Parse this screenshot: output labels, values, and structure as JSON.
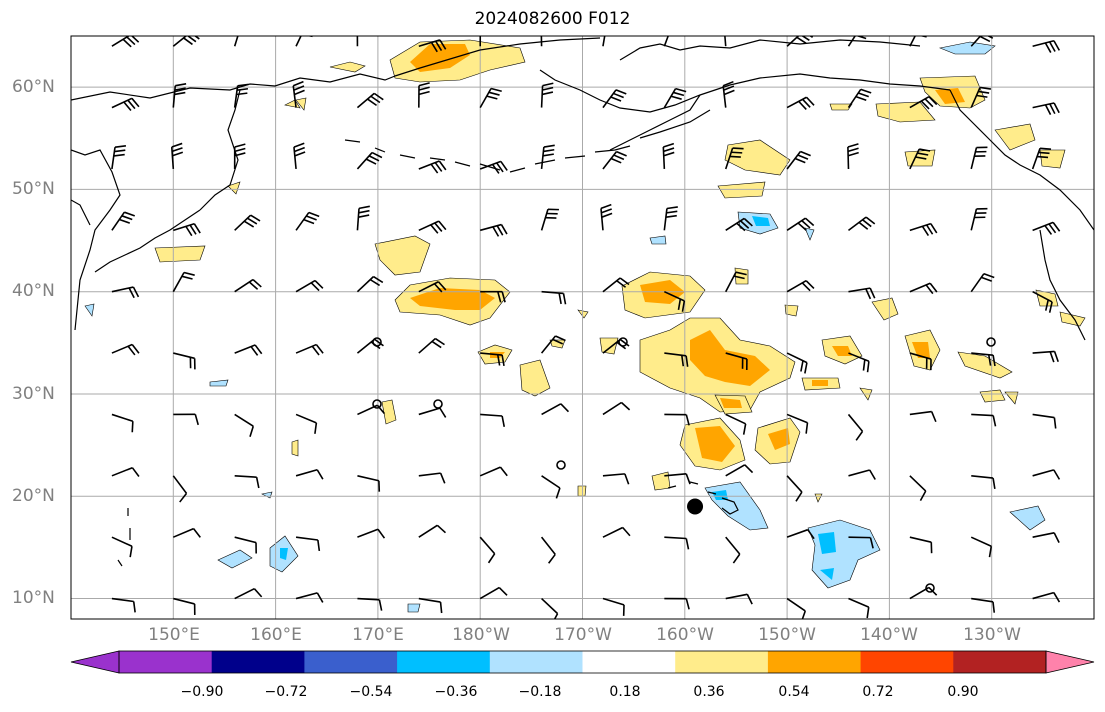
{
  "title": "2024082600 F012",
  "map": {
    "lon_range_east": [
      140,
      240
    ],
    "lat_range": [
      8,
      65
    ],
    "lat_labels": [
      "10°N",
      "20°N",
      "30°N",
      "40°N",
      "50°N",
      "60°N"
    ],
    "lon_labels": [
      "150°E",
      "160°E",
      "170°E",
      "180°W",
      "170°W",
      "160°W",
      "150°W",
      "140°W",
      "130°W"
    ],
    "typhoon_marker": {
      "lon_east": 201,
      "lat": 19,
      "label": ""
    }
  },
  "colorbar": {
    "ticks": [
      "−0.90",
      "−0.72",
      "−0.54",
      "−0.36",
      "−0.18",
      "0.18",
      "0.36",
      "0.54",
      "0.72",
      "0.90"
    ],
    "colors": [
      "#9a32cd",
      "#00008b",
      "#3a5fcd",
      "#00bfff",
      "#b0e2ff",
      "#ffffff",
      "#ffec8b",
      "#ffa500",
      "#ff4500",
      "#b22222",
      "#ff82ab"
    ]
  },
  "colors": {
    "gridline": "#aaaaaa",
    "coast": "#000000",
    "barb": "#000000"
  }
}
